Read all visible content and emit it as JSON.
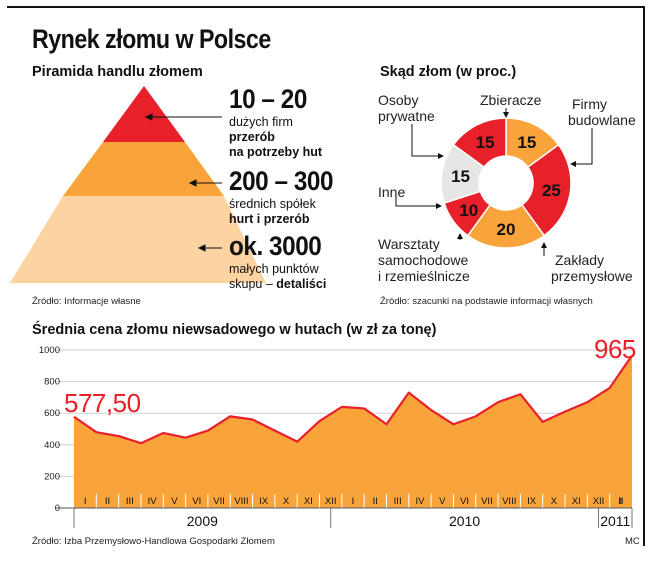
{
  "title": "Rynek złomu w Polsce",
  "pyramid": {
    "title": "Piramida handlu złomem",
    "source": "Źródło: Informacje własne",
    "colors": [
      "#e8202a",
      "#f9a43b",
      "#fcd3a1"
    ],
    "tiers": [
      {
        "value": "10 – 20",
        "line1": "dużych firm",
        "line2": "przerób",
        "line3": "na potrzeby hut"
      },
      {
        "value": "200 – 300",
        "line1": "średnich spółek",
        "line2": "hurt i przerób"
      },
      {
        "value": "ok. 3000",
        "line1": "małych punktów",
        "line2": "skupu – ",
        "line2_bold": "detaliści"
      }
    ]
  },
  "donut": {
    "title": "Skąd złom (w proc.)",
    "source": "Źródło: szacunki na podstawie informacji własnych",
    "slices": [
      {
        "label": "Zbieracze",
        "value": 15,
        "color": "#f9a43b"
      },
      {
        "label": "Firmy budowlane",
        "value": 25,
        "color": "#e8202a"
      },
      {
        "label": "Zakłady przemysłowe",
        "value": 20,
        "color": "#f9a43b"
      },
      {
        "label": "Warsztaty samochodowe i rzemieślnicze",
        "value": 10,
        "color": "#e8202a"
      },
      {
        "label": "Inne",
        "value": 15,
        "color": "#e6e6e6"
      },
      {
        "label": "Osoby prywatne",
        "value": 15,
        "color": "#e8202a"
      }
    ],
    "labels": {
      "zbieracze": "Zbieracze",
      "osoby_1": "Osoby",
      "osoby_2": "prywatne",
      "firmy_1": "Firmy",
      "firmy_2": "budowlane",
      "inne": "Inne",
      "warsztaty_1": "Warsztaty",
      "warsztaty_2": "samochodowe",
      "warsztaty_3": "i rzemieślnicze",
      "zaklady_1": "Zakłady",
      "zaklady_2": "przemysłowe"
    }
  },
  "chart_data": {
    "type": "area",
    "title": "Średnia cena złomu niewsadowego w hutach (w zł za tonę)",
    "source": "Źródło: Izba Przemysłowo-Handlowa Gospodarki Złomem",
    "credit": "MC",
    "ylim": [
      0,
      1000
    ],
    "yticks": [
      "0",
      "200",
      "400",
      "600",
      "800",
      "1000"
    ],
    "ytick_values": [
      0,
      200,
      400,
      600,
      800,
      1000
    ],
    "months": [
      "I",
      "II",
      "III",
      "IV",
      "V",
      "VI",
      "VII",
      "VIII",
      "IX",
      "X",
      "XI",
      "XII",
      "I",
      "II",
      "III",
      "IV",
      "V",
      "VI",
      "VII",
      "VIII",
      "IX",
      "X",
      "XI",
      "XII",
      "I",
      "II"
    ],
    "values": [
      577.5,
      480,
      455,
      410,
      475,
      445,
      490,
      580,
      560,
      490,
      420,
      550,
      640,
      630,
      530,
      730,
      620,
      530,
      580,
      670,
      720,
      545,
      610,
      670,
      760,
      965
    ],
    "years": [
      {
        "label": "2009",
        "start": 0,
        "end": 11
      },
      {
        "label": "2010",
        "start": 12,
        "end": 23
      },
      {
        "label": "2011",
        "start": 24,
        "end": 25
      }
    ],
    "annotations": {
      "first": "577,50",
      "last": "965"
    },
    "fill_color": "#f9a43b",
    "line_color": "#e8202a"
  }
}
